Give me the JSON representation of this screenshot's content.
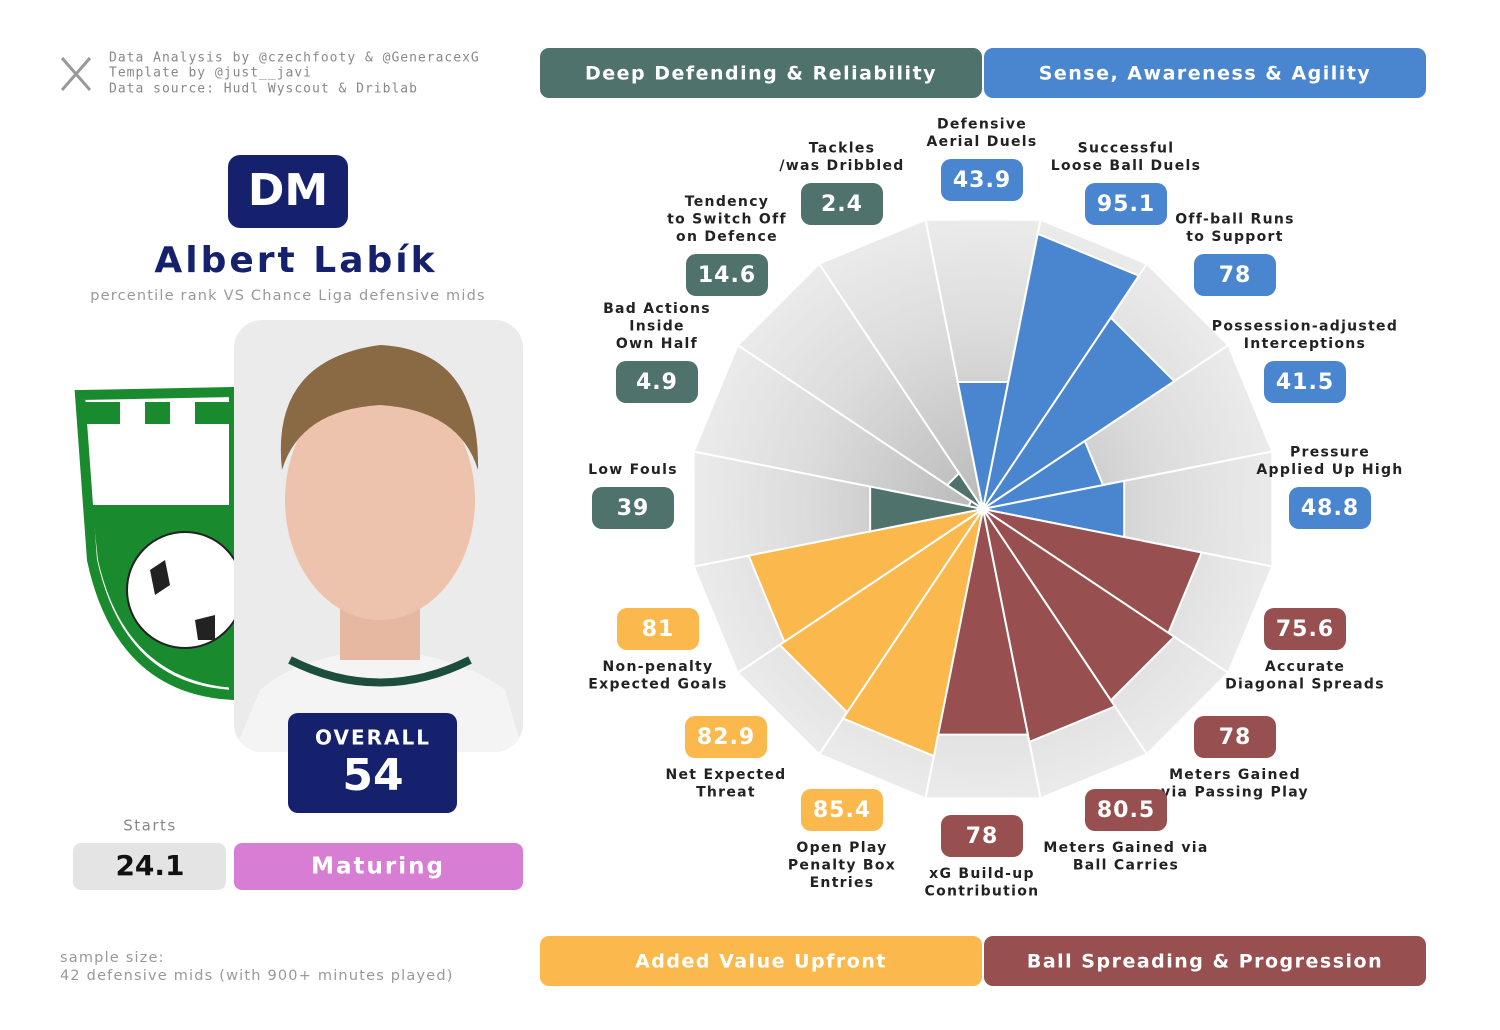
{
  "credits": [
    "Data Analysis by @czechfooty & @GeneracexG",
    "Template by @just__javi",
    "Data source: Hudl Wyscout & Driblab"
  ],
  "position": "DM",
  "player_name": "Albert Labík",
  "subtitle": "percentile rank VS Chance Liga defensive mids",
  "overall_label": "OVERALL",
  "overall_value": "54",
  "starts_label": "Starts",
  "starts_value": "24.1",
  "status": "Maturing",
  "sample_size": [
    "sample size:",
    "42 defensive mids (with 900+ minutes played)"
  ],
  "chart_data": {
    "type": "polar_bar",
    "rlim": [
      0,
      100
    ],
    "groups": [
      {
        "name": "Deep Defending & Reliability",
        "color": "#4f726c"
      },
      {
        "name": "Sense, Awareness & Agility",
        "color": "#4a86cf"
      },
      {
        "name": "Added Value Upfront",
        "color": "#fbb84c"
      },
      {
        "name": "Ball Spreading & Progression",
        "color": "#984f4f"
      }
    ],
    "categories": [
      [
        "Defensive",
        "Aerial Duels"
      ],
      [
        "Successful",
        "Loose Ball Duels"
      ],
      [
        "Off-ball Runs",
        "to Support"
      ],
      [
        "Possession-adjusted",
        "Interceptions"
      ],
      [
        "Pressure",
        "Applied Up High"
      ],
      [
        "Accurate",
        "Diagonal Spreads"
      ],
      [
        "Meters Gained",
        "via Passing Play"
      ],
      [
        "Meters Gained via",
        "Ball Carries"
      ],
      [
        "xG Build-up",
        "Contribution"
      ],
      [
        "Open Play",
        "Penalty Box",
        "Entries"
      ],
      [
        "Net Expected",
        "Threat"
      ],
      [
        "Non-penalty",
        "Expected Goals"
      ],
      [
        "Low Fouls"
      ],
      [
        "Bad Actions",
        "Inside",
        "Own Half"
      ],
      [
        "Tendency",
        "to Switch Off",
        "on Defence"
      ],
      [
        "Tackles",
        "/was Dribbled"
      ]
    ],
    "values": [
      43.9,
      95.1,
      78,
      41.5,
      48.8,
      75.6,
      78,
      80.5,
      78,
      85.4,
      82.9,
      81,
      39,
      4.9,
      14.6,
      2.4
    ],
    "colors": [
      "#4a86cf",
      "#4a86cf",
      "#4a86cf",
      "#4a86cf",
      "#4a86cf",
      "#984f4f",
      "#984f4f",
      "#984f4f",
      "#984f4f",
      "#fbb84c",
      "#fbb84c",
      "#fbb84c",
      "#4f726c",
      "#4f726c",
      "#4f726c",
      "#4f726c"
    ]
  }
}
